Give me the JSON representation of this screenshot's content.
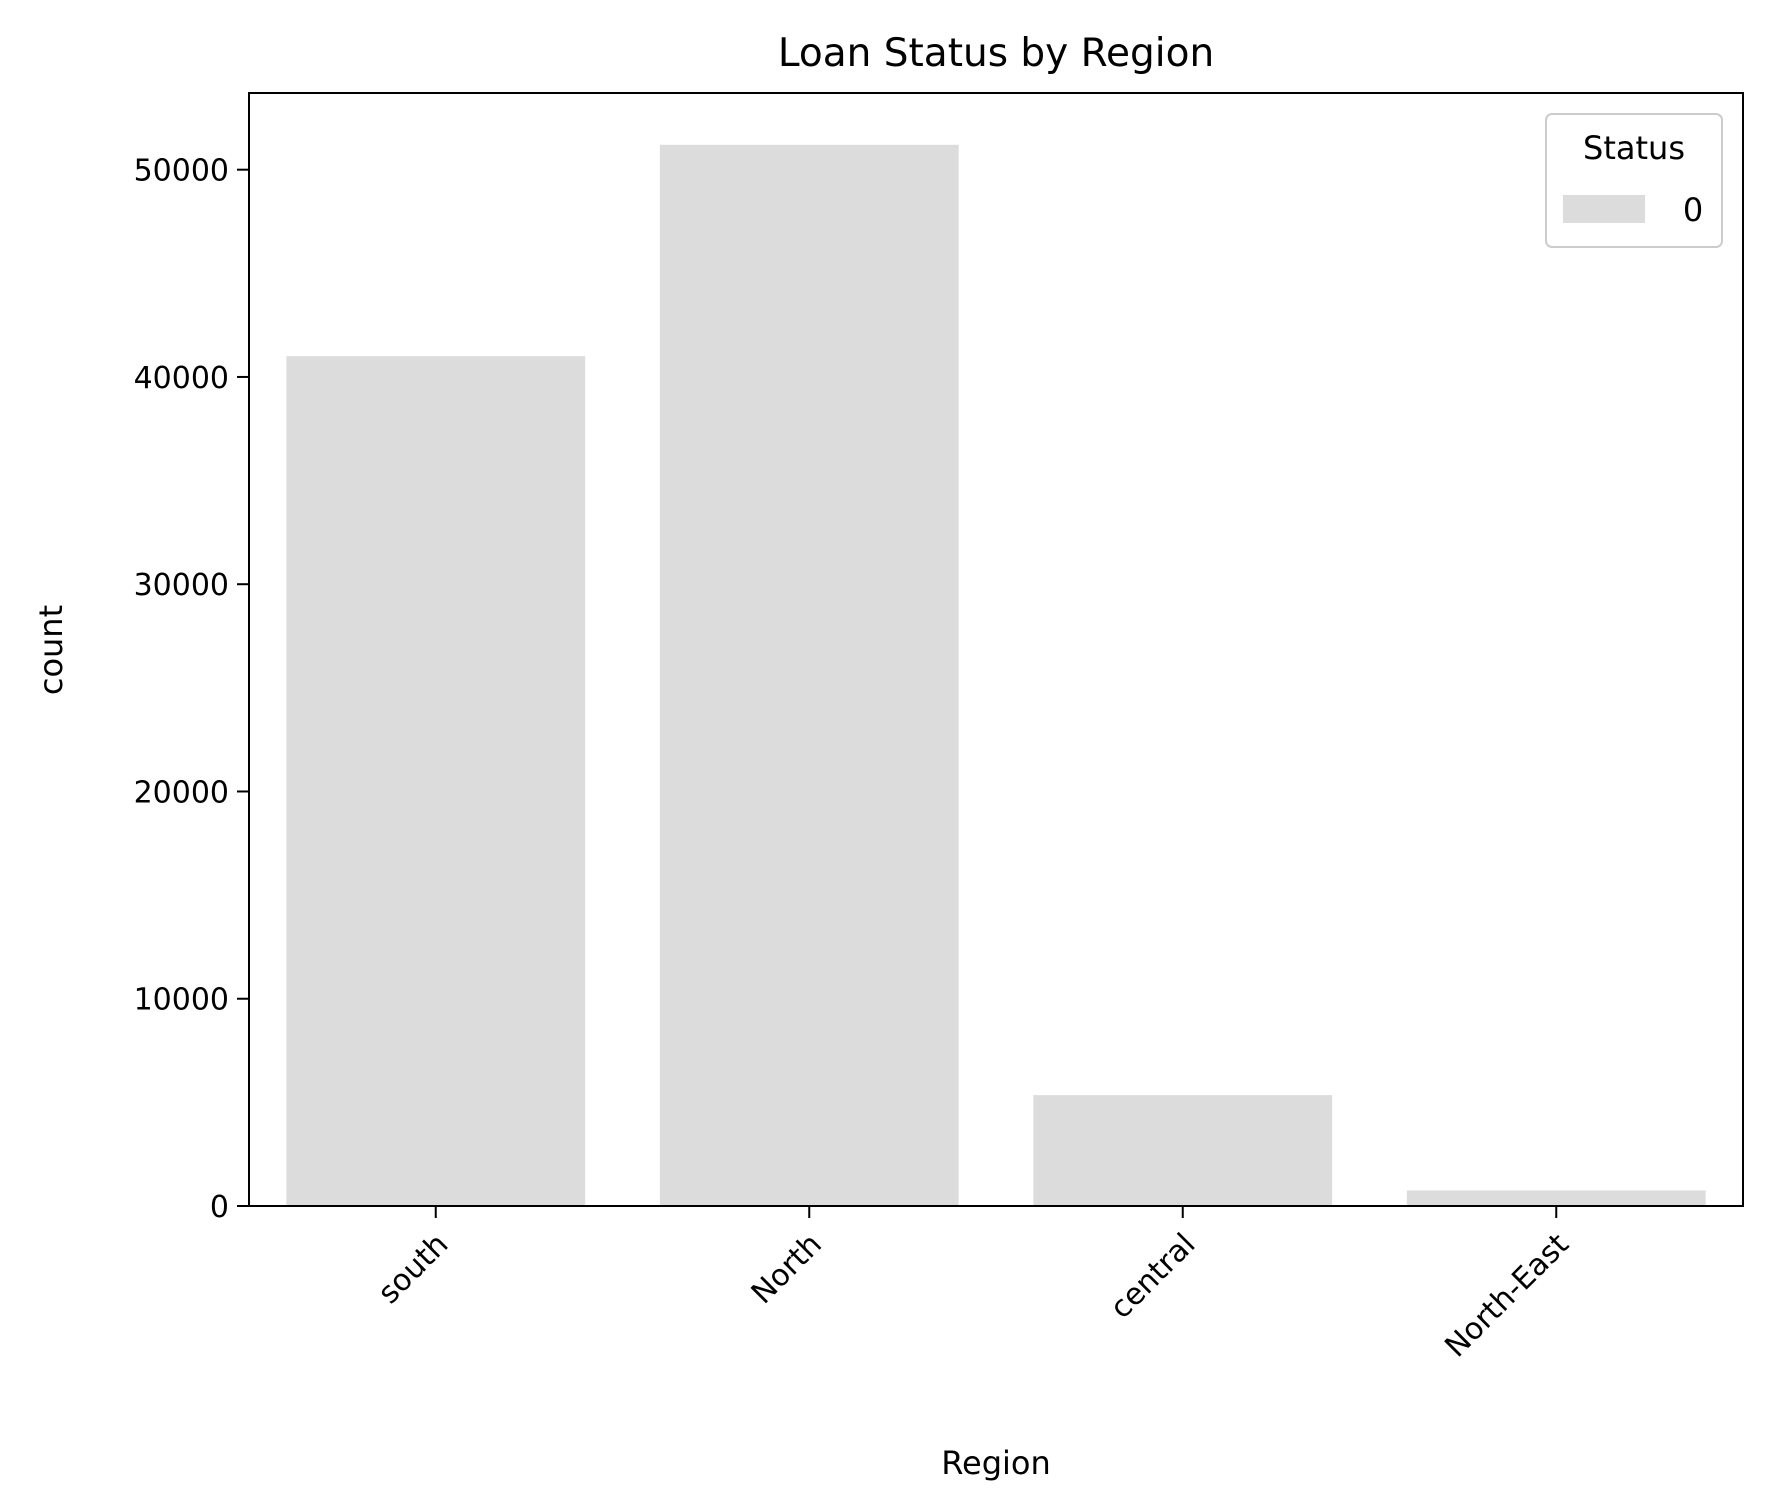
{
  "chart_data": {
    "type": "bar",
    "title": "Loan Status by Region",
    "xlabel": "Region",
    "ylabel": "count",
    "categories": [
      "south",
      "North",
      "central",
      "North-East"
    ],
    "series": [
      {
        "name": "0",
        "values": [
          41000,
          51200,
          5350,
          750
        ]
      }
    ],
    "ylim": [
      0,
      53700
    ],
    "yticks": [
      0,
      10000,
      20000,
      30000,
      40000,
      50000
    ],
    "ytick_labels": [
      "0",
      "10000",
      "20000",
      "30000",
      "40000",
      "50000"
    ],
    "legend": {
      "title": "Status",
      "position": "top-right"
    },
    "grid": false,
    "x_tick_rotation": -45,
    "bar_color": "#dcdcdc"
  }
}
